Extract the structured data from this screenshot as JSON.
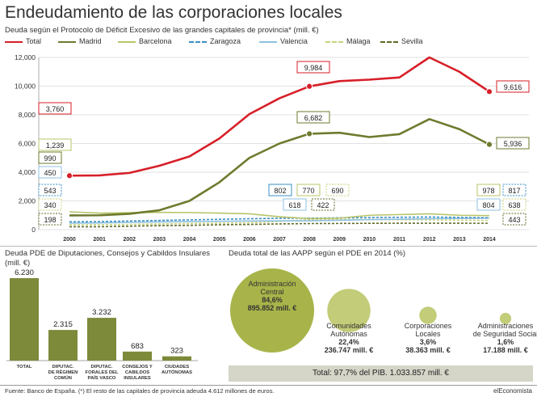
{
  "header": {
    "title": "Endeudamiento de las corporaciones locales",
    "subtitle": "Deuda según el Protocolo de Déficit Excesivo de las grandes capitales de provincia* (mill. €)"
  },
  "colors": {
    "total": "#d71f28",
    "madrid": "#6f7a2e",
    "barcelona": "#b9c46a",
    "zaragoza": "#3b8fc4",
    "valencia": "#8fc0e0",
    "malaga": "#c9d27a",
    "sevilla": "#5e6b28",
    "bar": "#7c8a3a",
    "bubble": "#a8b44a",
    "bubble_small": "#c3cc78"
  },
  "chart_data": [
    {
      "type": "line",
      "x": [
        "2000",
        "2001",
        "2002",
        "2003",
        "2004",
        "2005",
        "2006",
        "2007",
        "2008",
        "2009",
        "2010",
        "2011",
        "2012",
        "2013",
        "2014"
      ],
      "ylim": [
        0,
        12000
      ],
      "yticks": [
        "0",
        "2,000",
        "4,000",
        "6,000",
        "8,000",
        "10,000",
        "12,000"
      ],
      "grid": true,
      "legend_position": "top",
      "series": [
        {
          "name": "Total",
          "key": "total",
          "style": "solid",
          "values": [
            3760,
            3780,
            3950,
            4450,
            5100,
            6350,
            8050,
            9150,
            9984,
            10350,
            10450,
            10600,
            12000,
            11000,
            9616
          ]
        },
        {
          "name": "Madrid",
          "key": "madrid",
          "style": "solid",
          "values": [
            990,
            1000,
            1100,
            1350,
            2000,
            3300,
            5000,
            6000,
            6682,
            6750,
            6450,
            6650,
            7700,
            7000,
            5936
          ]
        },
        {
          "name": "Barcelona",
          "key": "barcelona",
          "style": "solid",
          "values": [
            1239,
            1150,
            1180,
            1200,
            1190,
            1150,
            1100,
            900,
            770,
            800,
            1000,
            1050,
            1100,
            1000,
            978
          ]
        },
        {
          "name": "Zaragoza",
          "key": "zaragoza",
          "style": "dashed",
          "values": [
            543,
            560,
            600,
            640,
            680,
            720,
            760,
            790,
            802,
            820,
            840,
            860,
            880,
            850,
            817
          ]
        },
        {
          "name": "Valencia",
          "key": "valencia",
          "style": "solid",
          "values": [
            450,
            470,
            500,
            540,
            560,
            580,
            600,
            610,
            618,
            650,
            700,
            720,
            760,
            780,
            804
          ]
        },
        {
          "name": "Málaga",
          "key": "malaga",
          "style": "dashed",
          "values": [
            340,
            350,
            360,
            400,
            430,
            450,
            480,
            570,
            690,
            700,
            700,
            690,
            680,
            660,
            638
          ]
        },
        {
          "name": "Sevilla",
          "key": "sevilla",
          "style": "dashed",
          "values": [
            198,
            200,
            240,
            280,
            300,
            340,
            360,
            400,
            422,
            430,
            440,
            445,
            450,
            445,
            443
          ]
        }
      ],
      "labels": [
        {
          "series": "total",
          "x": "2000",
          "text": "3,760"
        },
        {
          "series": "total",
          "x": "2008",
          "text": "9,984"
        },
        {
          "series": "total",
          "x": "2014",
          "text": "9,616"
        },
        {
          "series": "madrid",
          "x": "2008",
          "text": "6,682"
        },
        {
          "series": "madrid",
          "x": "2014",
          "text": "5,936"
        },
        {
          "series": "barcelona",
          "x": "2000",
          "text": "1,239"
        },
        {
          "series": "madrid",
          "x": "2000",
          "text": "990"
        },
        {
          "series": "valencia",
          "x": "2000",
          "text": "450"
        },
        {
          "series": "zaragoza",
          "x": "2000",
          "text": "543"
        },
        {
          "series": "malaga",
          "x": "2000",
          "text": "340"
        },
        {
          "series": "sevilla",
          "x": "2000",
          "text": "198"
        },
        {
          "series": "zaragoza",
          "x": "2008",
          "text": "802"
        },
        {
          "series": "barcelona",
          "x": "2008",
          "text": "770"
        },
        {
          "series": "malaga",
          "x": "2008",
          "text": "690"
        },
        {
          "series": "valencia",
          "x": "2008",
          "text": "618"
        },
        {
          "series": "sevilla",
          "x": "2008",
          "text": "422"
        },
        {
          "series": "barcelona",
          "x": "2014",
          "text": "978"
        },
        {
          "series": "zaragoza",
          "x": "2014",
          "text": "817"
        },
        {
          "series": "valencia",
          "x": "2014",
          "text": "804"
        },
        {
          "series": "malaga",
          "x": "2014",
          "text": "638"
        },
        {
          "series": "sevilla",
          "x": "2014",
          "text": "443"
        }
      ]
    },
    {
      "type": "bar",
      "title": "Deuda PDE de Diputaciones, Consejos y Cabildos Insulares",
      "unit": "(mill. €)",
      "categories": [
        "TOTAL",
        "DIPUTAC. DE RÉGIMEN COMÚN",
        "DIPUTAC. FORALES DEL PAÍS VASCO",
        "CONSEJOS Y CABILDOS INSULARES",
        "CIUDADES AUTÓNOMAS"
      ],
      "values": [
        6230,
        2315,
        3232,
        683,
        323
      ],
      "value_labels": [
        "6.230",
        "2.315",
        "3.232",
        "683",
        "323"
      ]
    },
    {
      "type": "bubble",
      "title": "Deuda total de las AAPP según el PDE en 2014 (%)",
      "items": [
        {
          "name": "Administración Central",
          "pct_label": "84,6%",
          "amount_label": "895.852 mill. €",
          "pct": 84.6,
          "amount": 895852
        },
        {
          "name": "Comunidades Autónomas",
          "pct_label": "22,4%",
          "amount_label": "236.747 mill. €",
          "pct": 22.4,
          "amount": 236747
        },
        {
          "name": "Corporaciones Locales",
          "pct_label": "3,6%",
          "amount_label": "38.363 mill. €",
          "pct": 3.6,
          "amount": 38363
        },
        {
          "name": "Administraciones de Seguridad Social",
          "pct_label": "1,6%",
          "amount_label": "17.188 mill. €",
          "pct": 1.6,
          "amount": 17188
        }
      ],
      "total_label": "Total: 97,7% del PIB. 1.033.857 mill. €"
    }
  ],
  "footer": {
    "source": "Fuente: Banco de España. (*) El resto de las capitales de provincia adeuda 4.612 millones de euros.",
    "brand": "elEconomista"
  }
}
